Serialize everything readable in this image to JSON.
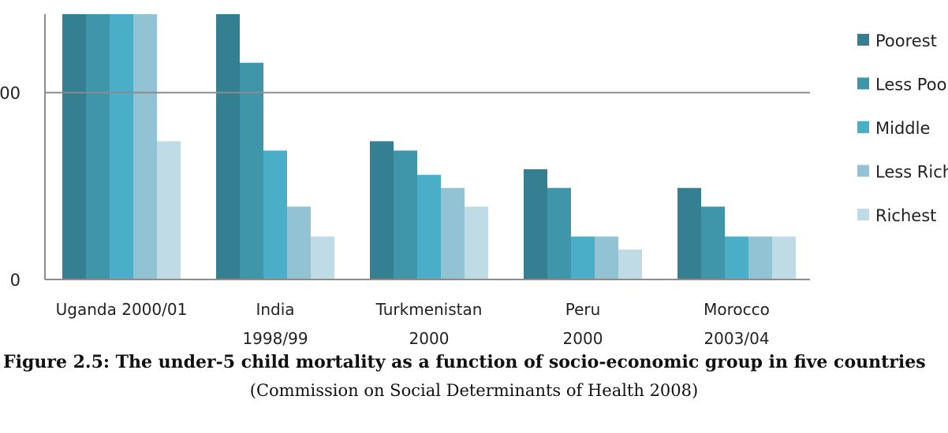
{
  "chart_data": {
    "type": "bar",
    "title": "",
    "xlabel": "",
    "ylabel": "",
    "y_tick_labels": [
      "0",
      "00"
    ],
    "ylim": [
      0,
      142
    ],
    "categories": [
      [
        "Uganda 2000/01"
      ],
      [
        "India",
        "1998/99"
      ],
      [
        "Turkmenistan",
        "2000"
      ],
      [
        "Peru",
        "2000"
      ],
      [
        "Morocco",
        "2003/04"
      ]
    ],
    "series": [
      {
        "name": "Poorest",
        "color": "#357f93",
        "values": [
          142,
          142,
          74,
          59,
          49
        ]
      },
      {
        "name": "Less Poor",
        "color": "#3f96ab",
        "values": [
          142,
          116,
          69,
          49,
          39
        ]
      },
      {
        "name": "Middle",
        "color": "#4aaec8",
        "values": [
          142,
          69,
          56,
          23,
          23
        ]
      },
      {
        "name": "Less Rich",
        "color": "#92c3d4",
        "values": [
          142,
          39,
          49,
          23,
          23
        ]
      },
      {
        "name": "Richest",
        "color": "#bfdbe5",
        "values": [
          74,
          23,
          39,
          16,
          23
        ]
      }
    ],
    "grid": "single reference line",
    "legend": "right"
  },
  "caption": {
    "title": "Figure 2.5: The under-5 child mortality as a function of socio-economic group in five countries",
    "source": "(Commission on Social Determinants of Health 2008)"
  }
}
